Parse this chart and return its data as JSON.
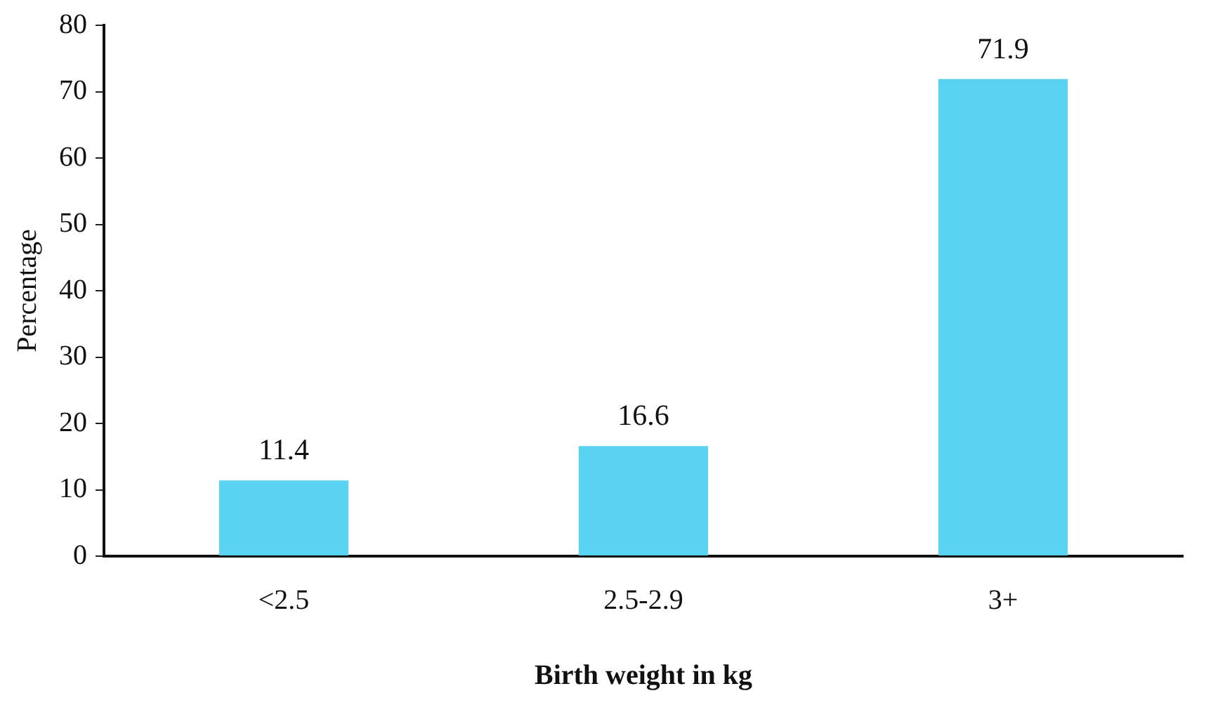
{
  "chart_data": {
    "type": "bar",
    "xlabel": "Birth weight in kg",
    "ylabel": "Percentage",
    "categories": [
      "<2.5",
      "2.5-2.9",
      "3+"
    ],
    "values": [
      11.4,
      16.6,
      71.9
    ],
    "color": "#5ad2f2",
    "ylim": [
      0,
      80
    ],
    "yticks": [
      0,
      10,
      20,
      30,
      40,
      50,
      60,
      70,
      80
    ],
    "grid": false,
    "legend": false,
    "data_labels": true
  }
}
